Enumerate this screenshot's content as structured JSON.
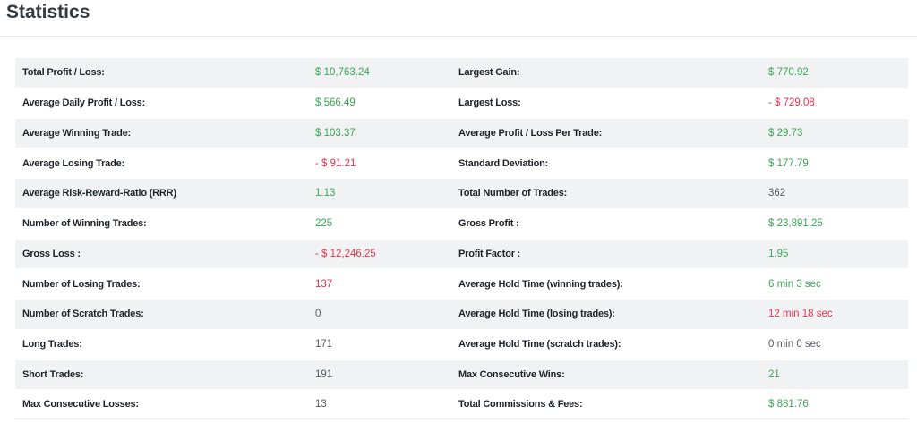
{
  "page": {
    "title": "Statistics"
  },
  "colors": {
    "positive": "#3aa655",
    "negative": "#e8334f",
    "neutral": "#555b61"
  },
  "rows": [
    {
      "label_left": "Total Profit / Loss:",
      "value_left": "$ 10,763.24",
      "tone_left": "pos",
      "label_right": "Largest Gain:",
      "value_right": "$ 770.92",
      "tone_right": "pos"
    },
    {
      "label_left": "Average Daily Profit / Loss:",
      "value_left": "$ 566.49",
      "tone_left": "pos",
      "label_right": "Largest Loss:",
      "value_right": "- $ 729.08",
      "tone_right": "neg"
    },
    {
      "label_left": "Average Winning Trade:",
      "value_left": "$ 103.37",
      "tone_left": "pos",
      "label_right": "Average Profit / Loss Per Trade:",
      "value_right": "$ 29.73",
      "tone_right": "pos"
    },
    {
      "label_left": "Average Losing Trade:",
      "value_left": "- $ 91.21",
      "tone_left": "neg",
      "label_right": "Standard Deviation:",
      "value_right": "$ 177.79",
      "tone_right": "pos"
    },
    {
      "label_left": "Average Risk-Reward-Ratio (RRR)",
      "value_left": "1.13",
      "tone_left": "pos",
      "label_right": "Total Number of Trades:",
      "value_right": "362",
      "tone_right": "neu"
    },
    {
      "label_left": "Number of Winning Trades:",
      "value_left": "225",
      "tone_left": "pos",
      "label_right": "Gross Profit :",
      "value_right": "$ 23,891.25",
      "tone_right": "pos"
    },
    {
      "label_left": "Gross Loss :",
      "value_left": "- $ 12,246.25",
      "tone_left": "neg",
      "label_right": "Profit Factor :",
      "value_right": "1.95",
      "tone_right": "pos"
    },
    {
      "label_left": "Number of Losing Trades:",
      "value_left": "137",
      "tone_left": "neg",
      "label_right": "Average Hold Time (winning trades):",
      "value_right": "6 min 3 sec",
      "tone_right": "pos"
    },
    {
      "label_left": "Number of Scratch Trades:",
      "value_left": "0",
      "tone_left": "neu",
      "label_right": "Average Hold Time (losing trades):",
      "value_right": "12 min 18 sec",
      "tone_right": "neg"
    },
    {
      "label_left": "Long Trades:",
      "value_left": "171",
      "tone_left": "neu",
      "label_right": "Average Hold Time (scratch trades):",
      "value_right": "0 min 0 sec",
      "tone_right": "neu"
    },
    {
      "label_left": "Short Trades:",
      "value_left": "191",
      "tone_left": "neu",
      "label_right": "Max Consecutive Wins:",
      "value_right": "21",
      "tone_right": "pos"
    },
    {
      "label_left": "Max Consecutive Losses:",
      "value_left": "13",
      "tone_left": "neu",
      "label_right": "Total Commissions & Fees:",
      "value_right": "$ 881.76",
      "tone_right": "pos"
    }
  ]
}
